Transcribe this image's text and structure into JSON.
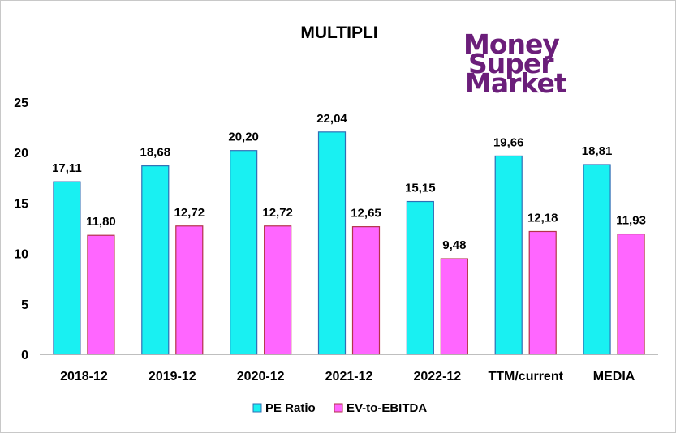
{
  "logo": {
    "lines": [
      "Money",
      "Super",
      "Market"
    ],
    "color": "#6b1e7a"
  },
  "colors": {
    "pe": "#19f0f2",
    "pe_stroke": "#2f6fb5",
    "ev": "#ff66ff",
    "ev_stroke": "#b3324a",
    "axis": "#7f7f7f"
  },
  "chart_data": {
    "type": "bar",
    "title": "MULTIPLI",
    "categories": [
      "2018-12",
      "2019-12",
      "2020-12",
      "2021-12",
      "2022-12",
      "TTM/current",
      "MEDIA"
    ],
    "series": [
      {
        "name": "PE Ratio",
        "values": [
          17.11,
          18.68,
          20.2,
          22.04,
          15.15,
          19.66,
          18.81
        ],
        "labels": [
          "17,11",
          "18,68",
          "20,20",
          "22,04",
          "15,15",
          "19,66",
          "18,81"
        ]
      },
      {
        "name": "EV-to-EBITDA",
        "values": [
          11.8,
          12.72,
          12.72,
          12.65,
          9.48,
          12.18,
          11.93
        ],
        "labels": [
          "11,80",
          "12,72",
          "12,72",
          "12,65",
          "9,48",
          "12,18",
          "11,93"
        ]
      }
    ],
    "ylim": [
      0,
      25
    ],
    "yticks": [
      0,
      5,
      10,
      15,
      20,
      25
    ],
    "grid": false,
    "legend": "bottom"
  }
}
